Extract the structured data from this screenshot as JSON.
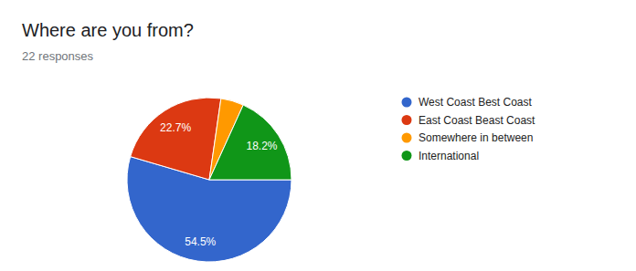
{
  "chart_data": {
    "type": "pie",
    "title": "Where are you from?",
    "subtitle": "22 responses",
    "categories": [
      "West Coast Best Coast",
      "East Coast Beast Coast",
      "Somewhere in between",
      "International"
    ],
    "values": [
      54.5,
      22.7,
      4.5,
      18.2
    ],
    "value_labels": [
      "54.5%",
      "22.7%",
      null,
      "18.2%"
    ],
    "colors": [
      "#3366cc",
      "#dc3912",
      "#ff9900",
      "#109618"
    ],
    "data_labels": true,
    "legend": "right"
  }
}
